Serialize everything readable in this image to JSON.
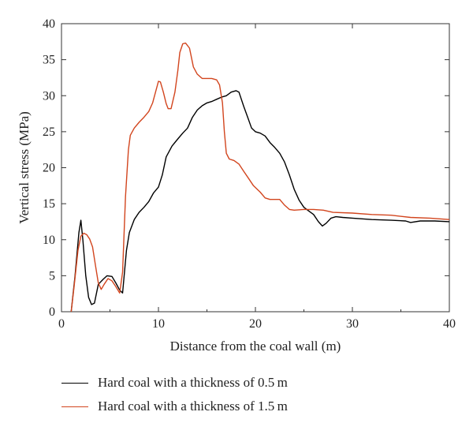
{
  "chart_data": {
    "type": "line",
    "xlabel": "Distance from the coal wall (m)",
    "ylabel": "Vertical stress (MPa)",
    "xlim": [
      0,
      40
    ],
    "ylim": [
      0,
      40
    ],
    "xticks": [
      0,
      10,
      20,
      30,
      40
    ],
    "yticks": [
      0,
      5,
      10,
      15,
      20,
      25,
      30,
      35,
      40
    ],
    "grid": false,
    "legend_position": "bottom",
    "series": [
      {
        "name": "Hard coal with a thickness of 0.5 m",
        "color": "#000000",
        "points": [
          [
            1.0,
            0.0
          ],
          [
            1.4,
            5.0
          ],
          [
            1.8,
            11.0
          ],
          [
            2.0,
            12.7
          ],
          [
            2.2,
            10.0
          ],
          [
            2.5,
            5.0
          ],
          [
            2.8,
            2.0
          ],
          [
            3.1,
            1.0
          ],
          [
            3.4,
            1.2
          ],
          [
            3.8,
            3.8
          ],
          [
            4.3,
            4.5
          ],
          [
            4.7,
            5.0
          ],
          [
            5.2,
            4.9
          ],
          [
            5.6,
            4.0
          ],
          [
            6.0,
            3.0
          ],
          [
            6.3,
            2.6
          ],
          [
            6.7,
            8.5
          ],
          [
            7.0,
            11.0
          ],
          [
            7.5,
            12.8
          ],
          [
            8.0,
            13.8
          ],
          [
            8.5,
            14.5
          ],
          [
            9.0,
            15.3
          ],
          [
            9.5,
            16.5
          ],
          [
            10.0,
            17.3
          ],
          [
            10.4,
            19.0
          ],
          [
            10.8,
            21.5
          ],
          [
            11.4,
            23.0
          ],
          [
            12.0,
            24.0
          ],
          [
            12.5,
            24.8
          ],
          [
            13.0,
            25.5
          ],
          [
            13.5,
            27.0
          ],
          [
            14.0,
            28.0
          ],
          [
            14.5,
            28.6
          ],
          [
            15.0,
            29.0
          ],
          [
            15.5,
            29.2
          ],
          [
            16.0,
            29.5
          ],
          [
            16.5,
            29.8
          ],
          [
            17.0,
            30.0
          ],
          [
            17.5,
            30.5
          ],
          [
            18.0,
            30.7
          ],
          [
            18.3,
            30.5
          ],
          [
            18.8,
            28.5
          ],
          [
            19.2,
            27.0
          ],
          [
            19.6,
            25.5
          ],
          [
            20.0,
            25.0
          ],
          [
            20.5,
            24.8
          ],
          [
            21.0,
            24.4
          ],
          [
            21.5,
            23.5
          ],
          [
            22.0,
            22.8
          ],
          [
            22.5,
            22.0
          ],
          [
            23.0,
            20.8
          ],
          [
            23.5,
            19.0
          ],
          [
            24.0,
            17.0
          ],
          [
            24.5,
            15.5
          ],
          [
            25.0,
            14.5
          ],
          [
            25.5,
            14.0
          ],
          [
            26.0,
            13.5
          ],
          [
            26.5,
            12.5
          ],
          [
            26.9,
            11.9
          ],
          [
            27.3,
            12.3
          ],
          [
            27.8,
            13.0
          ],
          [
            28.3,
            13.2
          ],
          [
            29.0,
            13.1
          ],
          [
            30.0,
            13.0
          ],
          [
            32.0,
            12.8
          ],
          [
            34.0,
            12.7
          ],
          [
            35.5,
            12.6
          ],
          [
            36.0,
            12.4
          ],
          [
            37.0,
            12.6
          ],
          [
            38.5,
            12.6
          ],
          [
            40.0,
            12.5
          ]
        ]
      },
      {
        "name": "Hard coal with a thickness of 1.5 m",
        "color": "#d2451e",
        "points": [
          [
            1.0,
            0.0
          ],
          [
            1.3,
            3.5
          ],
          [
            1.7,
            8.5
          ],
          [
            2.0,
            10.5
          ],
          [
            2.3,
            10.9
          ],
          [
            2.6,
            10.7
          ],
          [
            2.9,
            10.1
          ],
          [
            3.2,
            9.0
          ],
          [
            3.5,
            6.5
          ],
          [
            3.8,
            4.0
          ],
          [
            4.1,
            3.1
          ],
          [
            4.4,
            3.8
          ],
          [
            4.8,
            4.6
          ],
          [
            5.2,
            4.3
          ],
          [
            5.6,
            3.5
          ],
          [
            6.0,
            2.6
          ],
          [
            6.3,
            5.5
          ],
          [
            6.6,
            16.0
          ],
          [
            6.9,
            22.5
          ],
          [
            7.1,
            24.5
          ],
          [
            7.5,
            25.5
          ],
          [
            8.0,
            26.3
          ],
          [
            8.5,
            27.0
          ],
          [
            9.0,
            27.8
          ],
          [
            9.4,
            29.0
          ],
          [
            9.7,
            30.5
          ],
          [
            10.0,
            32.0
          ],
          [
            10.2,
            31.9
          ],
          [
            10.5,
            30.5
          ],
          [
            10.8,
            28.9
          ],
          [
            11.0,
            28.2
          ],
          [
            11.3,
            28.2
          ],
          [
            11.7,
            30.5
          ],
          [
            12.0,
            33.5
          ],
          [
            12.2,
            36.0
          ],
          [
            12.5,
            37.2
          ],
          [
            12.8,
            37.3
          ],
          [
            13.2,
            36.6
          ],
          [
            13.6,
            34.0
          ],
          [
            14.0,
            33.0
          ],
          [
            14.5,
            32.4
          ],
          [
            15.0,
            32.4
          ],
          [
            15.5,
            32.4
          ],
          [
            16.0,
            32.2
          ],
          [
            16.3,
            31.5
          ],
          [
            16.6,
            29.0
          ],
          [
            16.8,
            25.0
          ],
          [
            17.0,
            22.0
          ],
          [
            17.3,
            21.2
          ],
          [
            17.8,
            21.0
          ],
          [
            18.3,
            20.5
          ],
          [
            18.8,
            19.5
          ],
          [
            19.3,
            18.5
          ],
          [
            19.8,
            17.5
          ],
          [
            20.5,
            16.6
          ],
          [
            21.0,
            15.8
          ],
          [
            21.5,
            15.6
          ],
          [
            22.0,
            15.6
          ],
          [
            22.5,
            15.6
          ],
          [
            23.0,
            14.8
          ],
          [
            23.5,
            14.2
          ],
          [
            24.0,
            14.1
          ],
          [
            25.0,
            14.2
          ],
          [
            26.0,
            14.2
          ],
          [
            27.0,
            14.1
          ],
          [
            28.0,
            13.8
          ],
          [
            30.0,
            13.7
          ],
          [
            32.0,
            13.5
          ],
          [
            34.0,
            13.4
          ],
          [
            36.0,
            13.1
          ],
          [
            38.0,
            13.0
          ],
          [
            40.0,
            12.8
          ]
        ]
      }
    ]
  }
}
